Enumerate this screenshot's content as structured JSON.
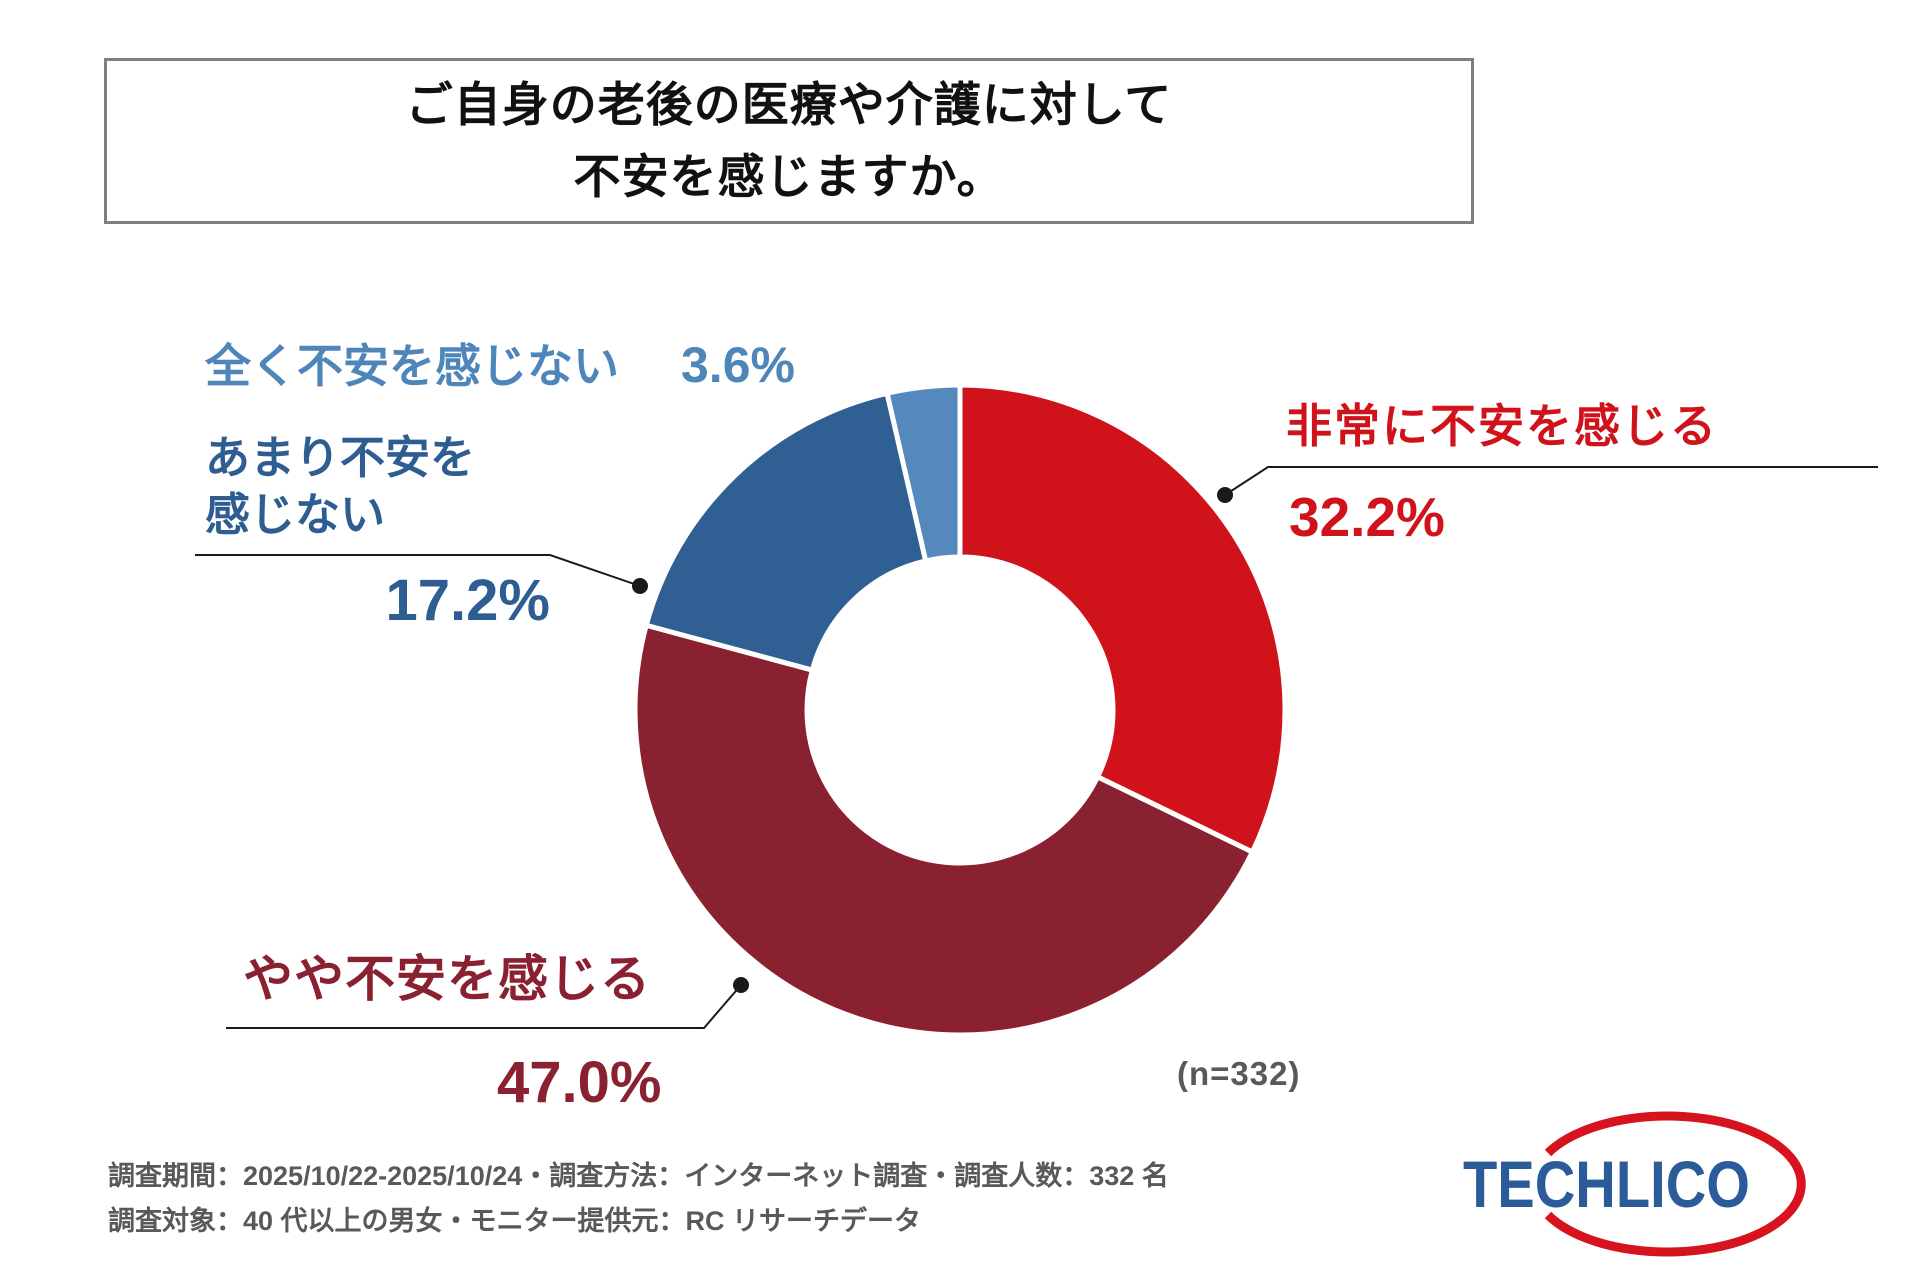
{
  "title": {
    "line1": "ご自身の老後の医療や介護に対して",
    "line2": "不安を感じますか。"
  },
  "chart_data": {
    "type": "pie",
    "subtype": "donut",
    "title": "ご自身の老後の医療や介護に対して不安を感じますか。",
    "unit": "%",
    "sample_n": 332,
    "sample_label": "(n=332)",
    "start_angle_deg": -90,
    "direction": "clockwise",
    "donut_hole_ratio": 0.47,
    "segments": [
      {
        "label": "非常に不安を感じる",
        "value": 32.2,
        "display": "32.2%",
        "color": "#d0121b"
      },
      {
        "label": "やや不安を感じる",
        "value": 47.0,
        "display": "47.0%",
        "color": "#8a2130"
      },
      {
        "label": "あまり不安を感じない",
        "value": 17.2,
        "display": "17.2%",
        "color": "#305f93"
      },
      {
        "label": "全く不安を感じない",
        "value": 3.6,
        "display": "3.6%",
        "color": "#5588bd"
      }
    ]
  },
  "labels": {
    "strongly": {
      "name": "非常に不安を感じる",
      "pct": "32.2%"
    },
    "somewhat": {
      "name": "やや不安を感じる",
      "pct": "47.0%"
    },
    "slightly_not": {
      "line1": "あまり不安を",
      "line2": "感じない",
      "pct": "17.2%"
    },
    "not_at_all": {
      "name": "全く不安を感じない",
      "pct": "3.6%"
    }
  },
  "annotation": {
    "sample": "(n=332)"
  },
  "footer": {
    "line1": "調査期間：2025/10/22-2025/10/24・調査方法：インターネット調査・調査人数：332 名",
    "line2": "調査対象：40 代以上の男女・モニター提供元：RC リサーチデータ"
  },
  "logo": {
    "text": "TECHLICO",
    "text_color": "#2b5c99",
    "ring_color": "#d6131e"
  },
  "colors": {
    "red": "#d0121b",
    "maroon": "#8a2130",
    "dark_blue": "#305f93",
    "light_blue": "#5588bd",
    "text_gray": "#595959",
    "border_gray": "#7f7f7f",
    "leader_black": "#1a1a1a"
  }
}
